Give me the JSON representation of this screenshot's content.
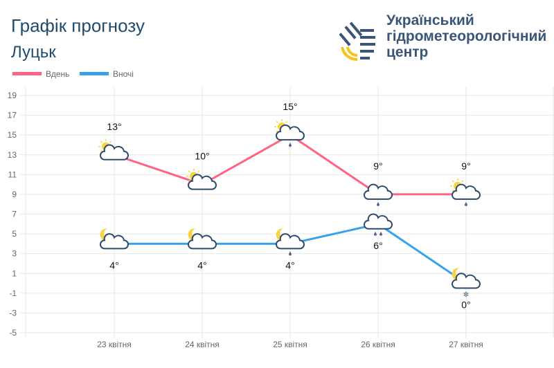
{
  "header": {
    "title": "Графік прогнозу",
    "city": "Луцьк",
    "org_name": [
      "Український",
      "гідрометеорологічний",
      "центр"
    ]
  },
  "chart_data": {
    "type": "line",
    "categories": [
      "23 квітня",
      "24 квітня",
      "25 квітня",
      "26 квітня",
      "27 квітня"
    ],
    "ylim": [
      -5,
      19
    ],
    "yticks": [
      19,
      17,
      15,
      13,
      11,
      9,
      7,
      5,
      3,
      1,
      -1,
      -3,
      -5
    ],
    "grid": true,
    "legend": "top-left",
    "series": [
      {
        "name": "Вдень",
        "color": "#ff6384",
        "values": [
          13,
          10,
          15,
          9,
          9
        ],
        "labels": [
          "13°",
          "10°",
          "15°",
          "9°",
          "9°"
        ],
        "icons": [
          "sun-cloud",
          "sun-cloud",
          "sun-cloud-rain",
          "cloud-rain",
          "sun-cloud-rain"
        ]
      },
      {
        "name": "Вночі",
        "color": "#36a2eb",
        "values": [
          4,
          4,
          4,
          6,
          0
        ],
        "labels": [
          "4°",
          "4°",
          "4°",
          "6°",
          "0°"
        ],
        "icons": [
          "moon-cloud",
          "moon-cloud",
          "moon-cloud-rain",
          "cloud-rain-heavy",
          "moon-cloud-snow"
        ]
      }
    ]
  }
}
